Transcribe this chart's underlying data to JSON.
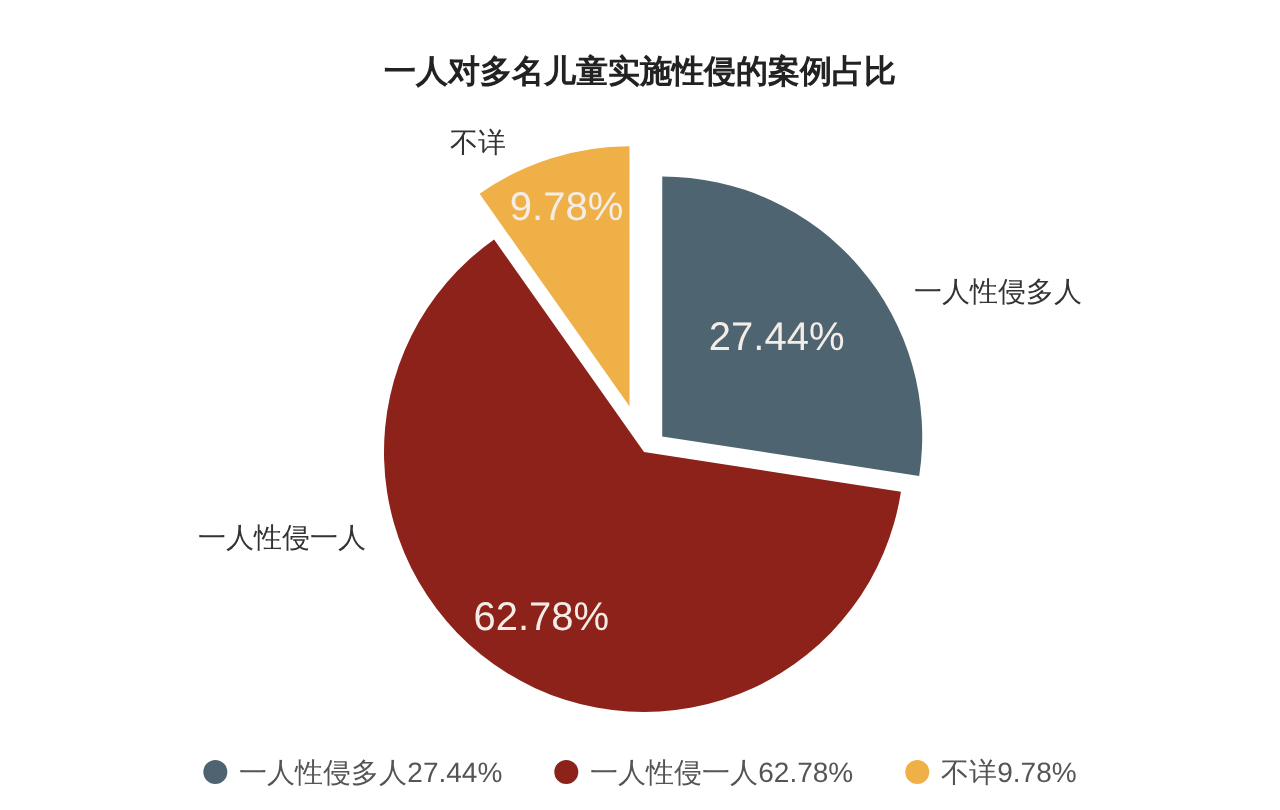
{
  "chart_data": {
    "type": "pie",
    "title": "一人对多名儿童实施性侵的案例占比",
    "categories": [
      "一人性侵多人",
      "一人性侵一人",
      "不详"
    ],
    "values": [
      27.44,
      62.78,
      9.78
    ],
    "value_labels": [
      "27.44%",
      "62.78%",
      "9.78%"
    ],
    "colors": [
      "#4e6470",
      "#8c2219",
      "#f0b048"
    ],
    "legend": "bottom"
  }
}
